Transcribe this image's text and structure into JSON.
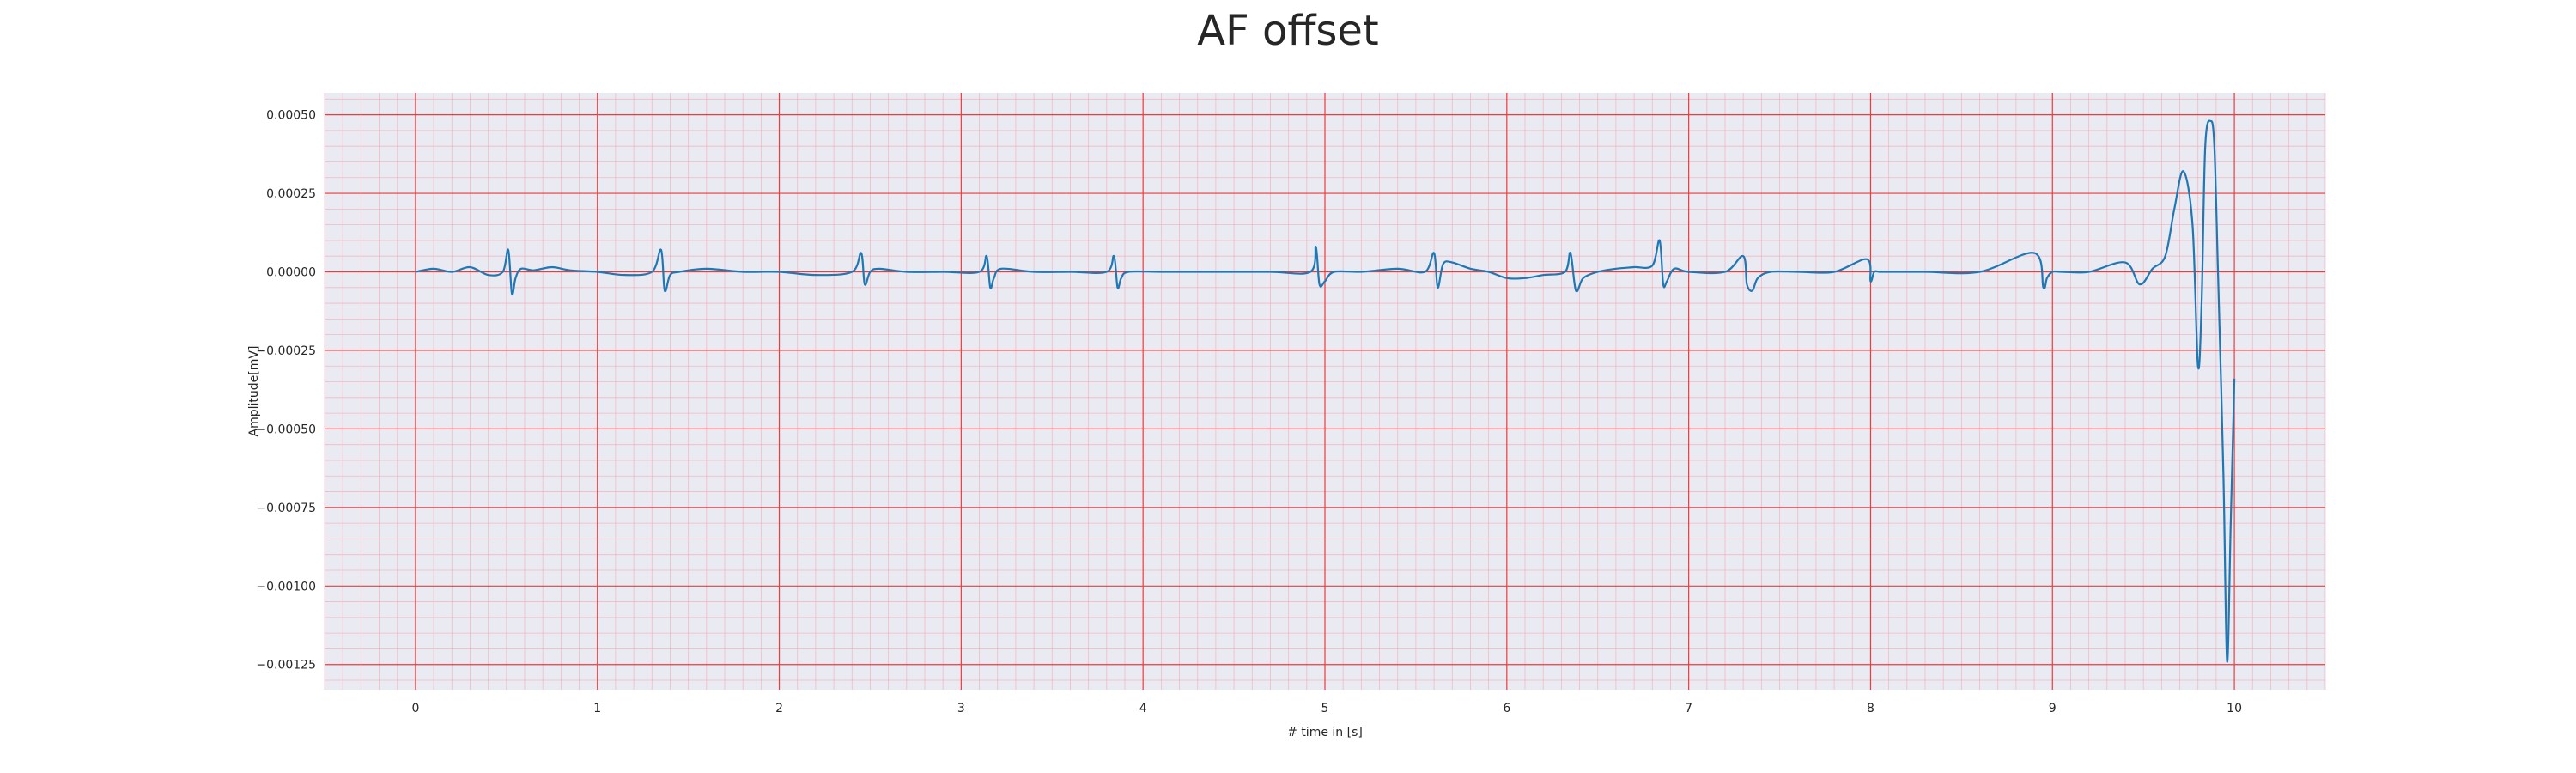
{
  "chart_data": {
    "type": "line",
    "title": "AF offset",
    "xlabel": "# time in [s]",
    "ylabel": "Amplitude[mV]",
    "xlim": [
      -0.5,
      10.5
    ],
    "ylim": [
      -0.00133,
      0.00057
    ],
    "x_ticks": [
      0,
      1,
      2,
      3,
      4,
      5,
      6,
      7,
      8,
      9,
      10
    ],
    "x_tick_labels": [
      "0",
      "1",
      "2",
      "3",
      "4",
      "5",
      "6",
      "7",
      "8",
      "9",
      "10"
    ],
    "y_ticks": [
      0.0005,
      0.00025,
      0.0,
      -0.00025,
      -0.0005,
      -0.00075,
      -0.001,
      -0.00125
    ],
    "y_tick_labels": [
      "0.00050",
      "0.00025",
      "0.00000",
      "−0.00025",
      "−0.00050",
      "−0.00075",
      "−0.00100",
      "−0.00125"
    ],
    "grid": "major and minor",
    "series": [
      {
        "color": "#1f77b4",
        "x": [
          0.0,
          0.1,
          0.2,
          0.3,
          0.4,
          0.48,
          0.51,
          0.53,
          0.55,
          0.58,
          0.65,
          0.75,
          0.85,
          1.0,
          1.15,
          1.3,
          1.35,
          1.37,
          1.4,
          1.45,
          1.6,
          1.8,
          2.0,
          2.2,
          2.4,
          2.45,
          2.47,
          2.5,
          2.55,
          2.7,
          2.9,
          3.1,
          3.14,
          3.16,
          3.18,
          3.22,
          3.4,
          3.6,
          3.8,
          3.84,
          3.86,
          3.88,
          3.92,
          4.1,
          4.4,
          4.7,
          4.92,
          4.95,
          4.97,
          5.0,
          5.05,
          5.2,
          5.4,
          5.55,
          5.6,
          5.62,
          5.65,
          5.7,
          5.8,
          5.9,
          6.0,
          6.1,
          6.2,
          6.32,
          6.35,
          6.38,
          6.42,
          6.5,
          6.6,
          6.7,
          6.8,
          6.84,
          6.86,
          6.88,
          6.92,
          7.0,
          7.2,
          7.3,
          7.32,
          7.35,
          7.38,
          7.45,
          7.6,
          7.8,
          7.98,
          8.0,
          8.02,
          8.05,
          8.1,
          8.3,
          8.6,
          8.9,
          8.95,
          8.97,
          9.0,
          9.05,
          9.2,
          9.4,
          9.48,
          9.55,
          9.62,
          9.67,
          9.72,
          9.77,
          9.8,
          9.82,
          9.84,
          9.87,
          9.89,
          9.91,
          9.94,
          9.96,
          9.98,
          10.0
        ],
        "y": [
          0.0,
          1e-05,
          0.0,
          1.5e-05,
          -1e-05,
          0.0,
          7e-05,
          -7e-05,
          -2e-05,
          1e-05,
          5e-06,
          1.5e-05,
          5e-06,
          0.0,
          -1e-05,
          0.0,
          7e-05,
          -6e-05,
          -1e-05,
          0.0,
          1e-05,
          0.0,
          0.0,
          -1e-05,
          0.0,
          6e-05,
          -4e-05,
          0.0,
          1e-05,
          0.0,
          0.0,
          0.0,
          5e-05,
          -5e-05,
          -2e-05,
          1e-05,
          0.0,
          0.0,
          0.0,
          5e-05,
          -5e-05,
          -2e-05,
          0.0,
          0.0,
          0.0,
          0.0,
          0.0,
          8e-05,
          -4e-05,
          -3e-05,
          0.0,
          0.0,
          1e-05,
          0.0,
          6e-05,
          -5e-05,
          2.5e-05,
          3e-05,
          1e-05,
          0.0,
          -2e-05,
          -2e-05,
          -1e-05,
          0.0,
          6e-05,
          -6e-05,
          -2e-05,
          0.0,
          1e-05,
          1.5e-05,
          2e-05,
          0.0001,
          -4e-05,
          -3e-05,
          1e-05,
          0.0,
          0.0,
          5e-05,
          -4e-05,
          -6e-05,
          -2e-05,
          0.0,
          0.0,
          0.0,
          4e-05,
          -3e-05,
          0.0,
          0.0,
          0.0,
          0.0,
          0.0,
          6e-05,
          -5e-05,
          -2e-05,
          0.0,
          0.0,
          0.0,
          3e-05,
          -4e-05,
          1e-05,
          5e-05,
          0.0002,
          0.00032,
          0.00015,
          -0.0003,
          -0.0001,
          0.0004,
          0.00048,
          0.0004,
          0.0,
          -0.00065,
          -0.00124,
          -0.0008,
          -0.00034
        ]
      }
    ]
  }
}
